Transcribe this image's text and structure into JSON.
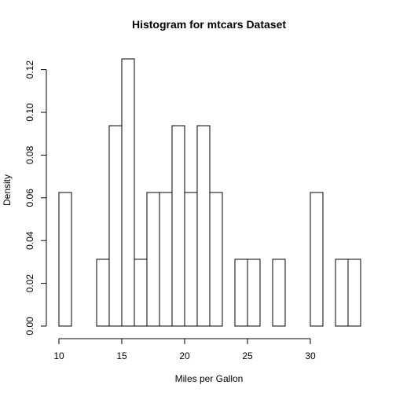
{
  "chart_data": {
    "type": "bar",
    "title": "Histogram for mtcars Dataset",
    "xlabel": "Miles per Gallon",
    "ylabel": "Density",
    "xlim": [
      10,
      34
    ],
    "ylim": [
      0,
      0.125
    ],
    "bin_width": 1,
    "bins": [
      {
        "x0": 10,
        "x1": 11,
        "density": 0.0625
      },
      {
        "x0": 11,
        "x1": 12,
        "density": 0
      },
      {
        "x0": 12,
        "x1": 13,
        "density": 0
      },
      {
        "x0": 13,
        "x1": 14,
        "density": 0.03125
      },
      {
        "x0": 14,
        "x1": 15,
        "density": 0.09375
      },
      {
        "x0": 15,
        "x1": 16,
        "density": 0.125
      },
      {
        "x0": 16,
        "x1": 17,
        "density": 0.03125
      },
      {
        "x0": 17,
        "x1": 18,
        "density": 0.0625
      },
      {
        "x0": 18,
        "x1": 19,
        "density": 0.0625
      },
      {
        "x0": 19,
        "x1": 20,
        "density": 0.09375
      },
      {
        "x0": 20,
        "x1": 21,
        "density": 0.0625
      },
      {
        "x0": 21,
        "x1": 22,
        "density": 0.09375
      },
      {
        "x0": 22,
        "x1": 23,
        "density": 0.0625
      },
      {
        "x0": 23,
        "x1": 24,
        "density": 0
      },
      {
        "x0": 24,
        "x1": 25,
        "density": 0.03125
      },
      {
        "x0": 25,
        "x1": 26,
        "density": 0.03125
      },
      {
        "x0": 26,
        "x1": 27,
        "density": 0
      },
      {
        "x0": 27,
        "x1": 28,
        "density": 0.03125
      },
      {
        "x0": 28,
        "x1": 29,
        "density": 0
      },
      {
        "x0": 29,
        "x1": 30,
        "density": 0
      },
      {
        "x0": 30,
        "x1": 31,
        "density": 0.0625
      },
      {
        "x0": 31,
        "x1": 32,
        "density": 0
      },
      {
        "x0": 32,
        "x1": 33,
        "density": 0.03125
      },
      {
        "x0": 33,
        "x1": 34,
        "density": 0.03125
      }
    ],
    "x_ticks": [
      {
        "value": 10,
        "label": "10"
      },
      {
        "value": 15,
        "label": "15"
      },
      {
        "value": 20,
        "label": "20"
      },
      {
        "value": 25,
        "label": "25"
      },
      {
        "value": 30,
        "label": "30"
      }
    ],
    "y_ticks": [
      {
        "value": 0.0,
        "label": "0.00"
      },
      {
        "value": 0.02,
        "label": "0.02"
      },
      {
        "value": 0.04,
        "label": "0.04"
      },
      {
        "value": 0.06,
        "label": "0.06"
      },
      {
        "value": 0.08,
        "label": "0.08"
      },
      {
        "value": 0.1,
        "label": "0.10"
      },
      {
        "value": 0.12,
        "label": "0.12"
      }
    ],
    "grid": false,
    "legend": "none",
    "colors": {
      "bar_fill": "#ffffff",
      "bar_stroke": "#000000",
      "text": "#000000"
    }
  }
}
